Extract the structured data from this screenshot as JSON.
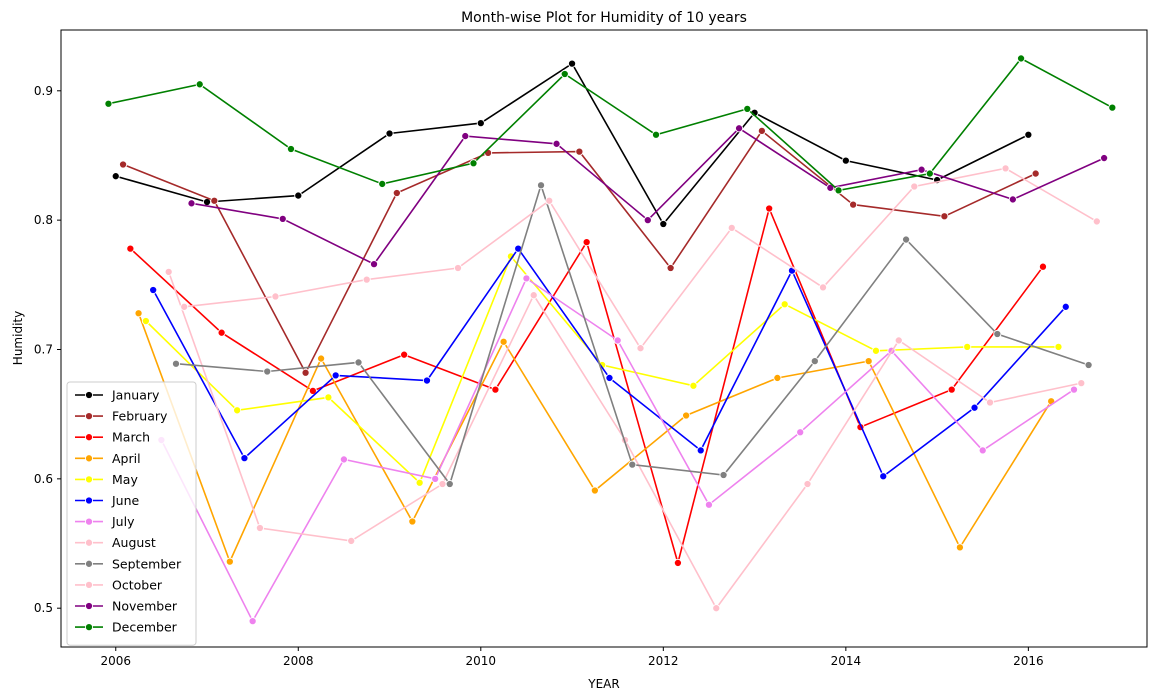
{
  "chart_data": {
    "type": "line",
    "title": "Month-wise Plot for Humidity of 10 years",
    "xlabel": "YEAR",
    "ylabel": "Humidity",
    "xlim": [
      2005.4,
      2017.3
    ],
    "ylim": [
      0.47,
      0.947
    ],
    "xticks": [
      2006,
      2008,
      2010,
      2012,
      2014,
      2016
    ],
    "yticks": [
      0.5,
      0.6,
      0.7,
      0.8,
      0.9
    ],
    "ytick_labels": [
      "0.5",
      "0.6",
      "0.7",
      "0.8",
      "0.9"
    ],
    "grid": false,
    "legend": "bottom-left",
    "series": [
      {
        "name": "January",
        "color": "#000000",
        "x": [
          2006.0,
          2007.0,
          2008.0,
          2009.0,
          2010.0,
          2011.0,
          2012.0,
          2013.0,
          2014.0,
          2015.0,
          2016.0
        ],
        "y": [
          0.834,
          0.814,
          0.819,
          0.867,
          0.875,
          0.921,
          0.797,
          0.883,
          0.846,
          0.831,
          0.866
        ]
      },
      {
        "name": "February",
        "color": "#a52a2a",
        "x": [
          2006.08,
          2007.08,
          2008.08,
          2009.08,
          2010.08,
          2011.08,
          2012.08,
          2013.08,
          2014.08,
          2015.08,
          2016.08
        ],
        "y": [
          0.843,
          0.815,
          0.682,
          0.821,
          0.852,
          0.853,
          0.763,
          0.869,
          0.812,
          0.803,
          0.836
        ]
      },
      {
        "name": "March",
        "color": "#ff0000",
        "x": [
          2006.16,
          2007.16,
          2008.16,
          2009.16,
          2010.16,
          2011.16,
          2012.16,
          2013.16,
          2014.16,
          2015.16,
          2016.16
        ],
        "y": [
          0.778,
          0.713,
          0.668,
          0.696,
          0.669,
          0.783,
          0.535,
          0.809,
          0.64,
          0.669,
          0.764
        ]
      },
      {
        "name": "April",
        "color": "#ffa500",
        "x": [
          2006.25,
          2007.25,
          2008.25,
          2009.25,
          2010.25,
          2011.25,
          2012.25,
          2013.25,
          2014.25,
          2015.25,
          2016.25
        ],
        "y": [
          0.728,
          0.536,
          0.693,
          0.567,
          0.706,
          0.591,
          0.649,
          0.678,
          0.691,
          0.547,
          0.66
        ]
      },
      {
        "name": "May",
        "color": "#ffff00",
        "x": [
          2006.33,
          2007.33,
          2008.33,
          2009.33,
          2010.33,
          2011.33,
          2012.33,
          2013.33,
          2014.33,
          2015.33,
          2016.33
        ],
        "y": [
          0.722,
          0.653,
          0.663,
          0.597,
          0.772,
          0.688,
          0.672,
          0.735,
          0.699,
          0.702,
          0.702
        ]
      },
      {
        "name": "June",
        "color": "#0000ff",
        "x": [
          2006.41,
          2007.41,
          2008.41,
          2009.41,
          2010.41,
          2011.41,
          2012.41,
          2013.41,
          2014.41,
          2015.41,
          2016.41
        ],
        "y": [
          0.746,
          0.616,
          0.68,
          0.676,
          0.778,
          0.678,
          0.622,
          0.761,
          0.602,
          0.655,
          0.733
        ]
      },
      {
        "name": "July",
        "color": "#ee82ee",
        "x": [
          2006.5,
          2007.5,
          2008.5,
          2009.5,
          2010.5,
          2011.5,
          2012.5,
          2013.5,
          2014.5,
          2015.5,
          2016.5
        ],
        "y": [
          0.63,
          0.49,
          0.615,
          0.6,
          0.755,
          0.707,
          0.58,
          0.636,
          0.699,
          0.622,
          0.669
        ]
      },
      {
        "name": "August",
        "color": "#ffc0cb",
        "x": [
          2006.58,
          2007.58,
          2008.58,
          2009.58,
          2010.58,
          2011.58,
          2012.58,
          2013.58,
          2014.58,
          2015.58,
          2016.58
        ],
        "y": [
          0.76,
          0.562,
          0.552,
          0.596,
          0.742,
          0.63,
          0.5,
          0.596,
          0.707,
          0.659,
          0.674
        ]
      },
      {
        "name": "September",
        "color": "#808080",
        "x": [
          2006.66,
          2007.66,
          2008.66,
          2009.66,
          2010.66,
          2011.66,
          2012.66,
          2013.66,
          2014.66,
          2015.66,
          2016.66
        ],
        "y": [
          0.689,
          0.683,
          0.69,
          0.596,
          0.827,
          0.611,
          0.603,
          0.691,
          0.785,
          0.712,
          0.688
        ]
      },
      {
        "name": "October",
        "color": "#ffc0cb",
        "x": [
          2006.75,
          2007.75,
          2008.75,
          2009.75,
          2010.75,
          2011.75,
          2012.75,
          2013.75,
          2014.75,
          2015.75,
          2016.75
        ],
        "y": [
          0.733,
          0.741,
          0.754,
          0.763,
          0.815,
          0.701,
          0.794,
          0.748,
          0.826,
          0.84,
          0.799
        ]
      },
      {
        "name": "November",
        "color": "#800080",
        "x": [
          2006.83,
          2007.83,
          2008.83,
          2009.83,
          2010.83,
          2011.83,
          2012.83,
          2013.83,
          2014.83,
          2015.83,
          2016.83
        ],
        "y": [
          0.813,
          0.801,
          0.766,
          0.865,
          0.859,
          0.8,
          0.871,
          0.825,
          0.839,
          0.816,
          0.848
        ]
      },
      {
        "name": "December",
        "color": "#008000",
        "x": [
          2005.92,
          2006.92,
          2007.92,
          2008.92,
          2009.92,
          2010.92,
          2011.92,
          2012.92,
          2013.92,
          2014.92,
          2015.92,
          2016.92
        ],
        "y": [
          0.89,
          0.905,
          0.855,
          0.828,
          0.844,
          0.913,
          0.866,
          0.886,
          0.823,
          0.836,
          0.925,
          0.887
        ]
      }
    ]
  }
}
